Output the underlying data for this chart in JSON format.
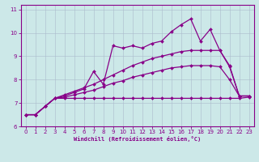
{
  "xlabel": "Windchill (Refroidissement éolien,°C)",
  "ylabel": "",
  "bg_color": "#cce8e8",
  "line_color": "#880088",
  "grid_color": "#aabbcc",
  "xlim": [
    -0.5,
    23.5
  ],
  "ylim": [
    6.0,
    11.2
  ],
  "xticks": [
    0,
    1,
    2,
    3,
    4,
    5,
    6,
    7,
    8,
    9,
    10,
    11,
    12,
    13,
    14,
    15,
    16,
    17,
    18,
    19,
    20,
    21,
    22,
    23
  ],
  "yticks": [
    6,
    7,
    8,
    9,
    10,
    11
  ],
  "x": [
    0,
    1,
    2,
    3,
    4,
    5,
    6,
    7,
    8,
    9,
    10,
    11,
    12,
    13,
    14,
    15,
    16,
    17,
    18,
    19,
    20,
    21,
    22,
    23
  ],
  "y_flat": [
    6.5,
    6.5,
    6.85,
    7.2,
    7.2,
    7.2,
    7.2,
    7.2,
    7.2,
    7.2,
    7.2,
    7.2,
    7.2,
    7.2,
    7.2,
    7.2,
    7.2,
    7.2,
    7.2,
    7.2,
    7.2,
    7.2,
    7.2,
    7.25
  ],
  "y_jagged": [
    6.5,
    6.5,
    6.85,
    7.2,
    7.3,
    7.45,
    7.6,
    8.35,
    7.8,
    9.45,
    9.35,
    9.45,
    9.35,
    9.55,
    9.65,
    10.05,
    10.35,
    10.6,
    9.65,
    10.15,
    9.25,
    8.55,
    7.3,
    7.3
  ],
  "y_upper": [
    6.5,
    6.5,
    6.85,
    7.2,
    7.35,
    7.5,
    7.65,
    7.8,
    8.0,
    8.2,
    8.4,
    8.6,
    8.75,
    8.9,
    9.0,
    9.1,
    9.2,
    9.25,
    9.25,
    9.25,
    9.25,
    8.6,
    7.3,
    7.3
  ],
  "y_lower": [
    6.5,
    6.5,
    6.85,
    7.2,
    7.25,
    7.35,
    7.45,
    7.55,
    7.7,
    7.85,
    7.95,
    8.1,
    8.2,
    8.3,
    8.4,
    8.5,
    8.55,
    8.6,
    8.6,
    8.6,
    8.55,
    8.0,
    7.3,
    7.3
  ]
}
